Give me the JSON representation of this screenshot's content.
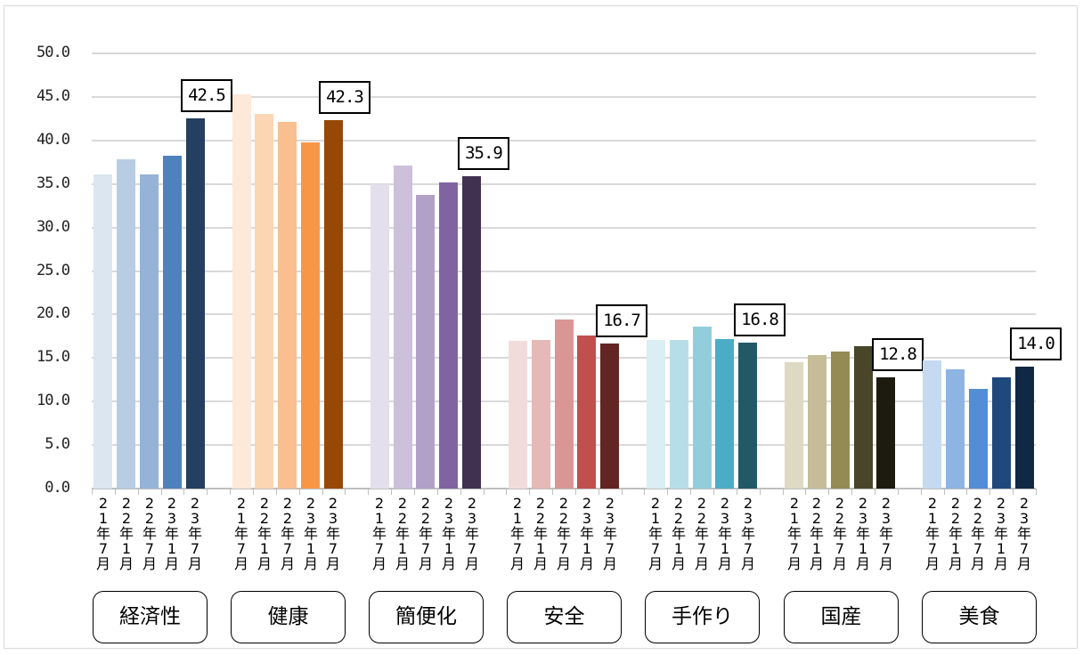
{
  "chart_data": {
    "type": "bar",
    "title": "",
    "xlabel": "",
    "ylabel": "",
    "ylim": [
      0,
      50
    ],
    "yticks": [
      "0.0",
      "5.0",
      "10.0",
      "15.0",
      "20.0",
      "25.0",
      "30.0",
      "35.0",
      "40.0",
      "45.0",
      "50.0"
    ],
    "grid": true,
    "legend": null,
    "periods": [
      "21年7月",
      "22年1月",
      "22年7月",
      "23年1月",
      "23年7月"
    ],
    "groups": [
      {
        "name": "経済性",
        "values": [
          36.1,
          37.8,
          36.1,
          38.2,
          42.5
        ],
        "colors": [
          "#DCE6F1",
          "#B8CCE4",
          "#95B3D7",
          "#4F81BD",
          "#243F60"
        ],
        "label": "42.5"
      },
      {
        "name": "健康",
        "values": [
          45.3,
          43.0,
          42.1,
          39.8,
          42.3
        ],
        "colors": [
          "#FDE9D9",
          "#FCD5B4",
          "#FABF8F",
          "#F79646",
          "#974806"
        ],
        "label": "42.3"
      },
      {
        "name": "簡便化",
        "values": [
          35.0,
          37.1,
          33.7,
          35.2,
          35.9
        ],
        "colors": [
          "#E4DFEC",
          "#CCC0DA",
          "#B1A0C7",
          "#8064A2",
          "#403151"
        ],
        "label": "35.9"
      },
      {
        "name": "安全",
        "values": [
          17.0,
          17.1,
          19.4,
          17.6,
          16.7
        ],
        "colors": [
          "#F2DCDB",
          "#E6B8B7",
          "#DA9694",
          "#C0504D",
          "#632523"
        ],
        "label": "16.7"
      },
      {
        "name": "手作り",
        "values": [
          17.1,
          17.1,
          18.6,
          17.2,
          16.8
        ],
        "colors": [
          "#DAEEF3",
          "#B7DEE8",
          "#92CDDC",
          "#4BACC6",
          "#215967"
        ],
        "label": "16.8"
      },
      {
        "name": "国産",
        "values": [
          14.5,
          15.3,
          15.7,
          16.4,
          12.8
        ],
        "colors": [
          "#DDD9C4",
          "#C4BD97",
          "#948A54",
          "#494529",
          "#1D1B10"
        ],
        "label": "12.8"
      },
      {
        "name": "美食",
        "values": [
          14.7,
          13.7,
          11.5,
          12.8,
          14.0
        ],
        "colors": [
          "#C5D9F1",
          "#8DB4E2",
          "#538DD5",
          "#1F497D",
          "#112845"
        ],
        "label": "14.0"
      }
    ]
  }
}
